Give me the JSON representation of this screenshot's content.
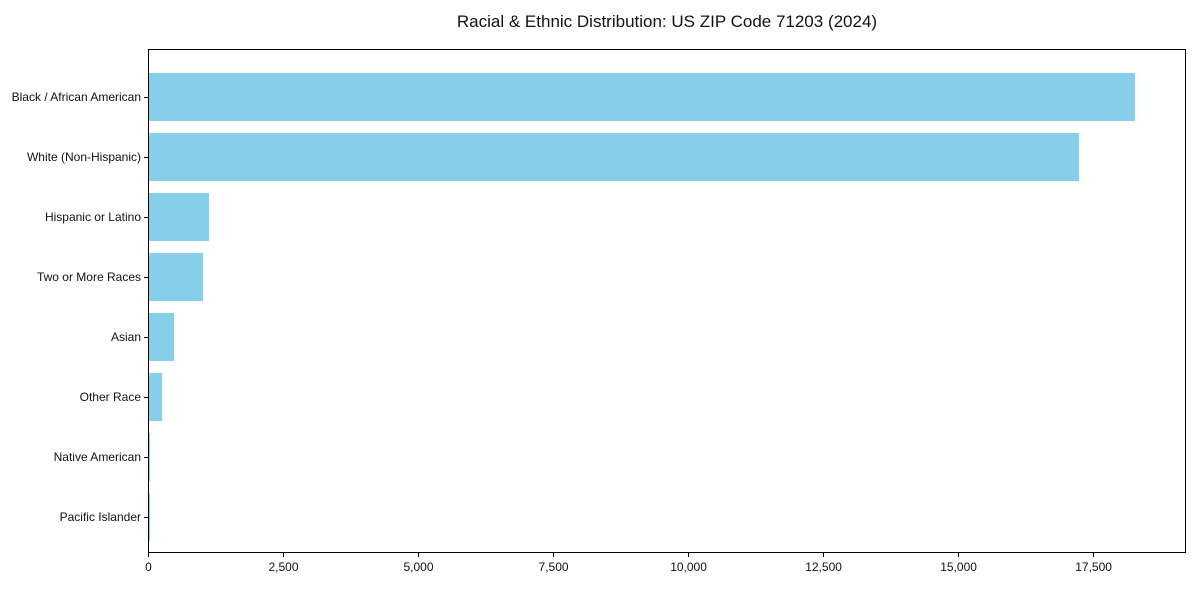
{
  "title": "Racial & Ethnic Distribution: US ZIP Code 71203 (2024)",
  "chart_data": {
    "type": "bar",
    "orientation": "horizontal",
    "title": "Racial & Ethnic Distribution: US ZIP Code 71203 (2024)",
    "categories": [
      "Black / African American",
      "White (Non-Hispanic)",
      "Hispanic or Latino",
      "Two or More Races",
      "Asian",
      "Other Race",
      "Native American",
      "Pacific Islander"
    ],
    "values": [
      18300,
      17250,
      1110,
      1000,
      460,
      240,
      25,
      5
    ],
    "bar_color": "#87CEEB",
    "xlabel": "",
    "ylabel": "",
    "xlim": [
      0,
      19220
    ],
    "x_ticks": [
      0,
      2500,
      5000,
      7500,
      10000,
      12500,
      15000,
      17500
    ],
    "x_tick_labels": [
      "0",
      "2,500",
      "5,000",
      "7,500",
      "10,000",
      "12,500",
      "15,000",
      "17,500"
    ],
    "grid": false,
    "legend": "none",
    "background_color": "#ffffff",
    "text_color": "#111111"
  }
}
